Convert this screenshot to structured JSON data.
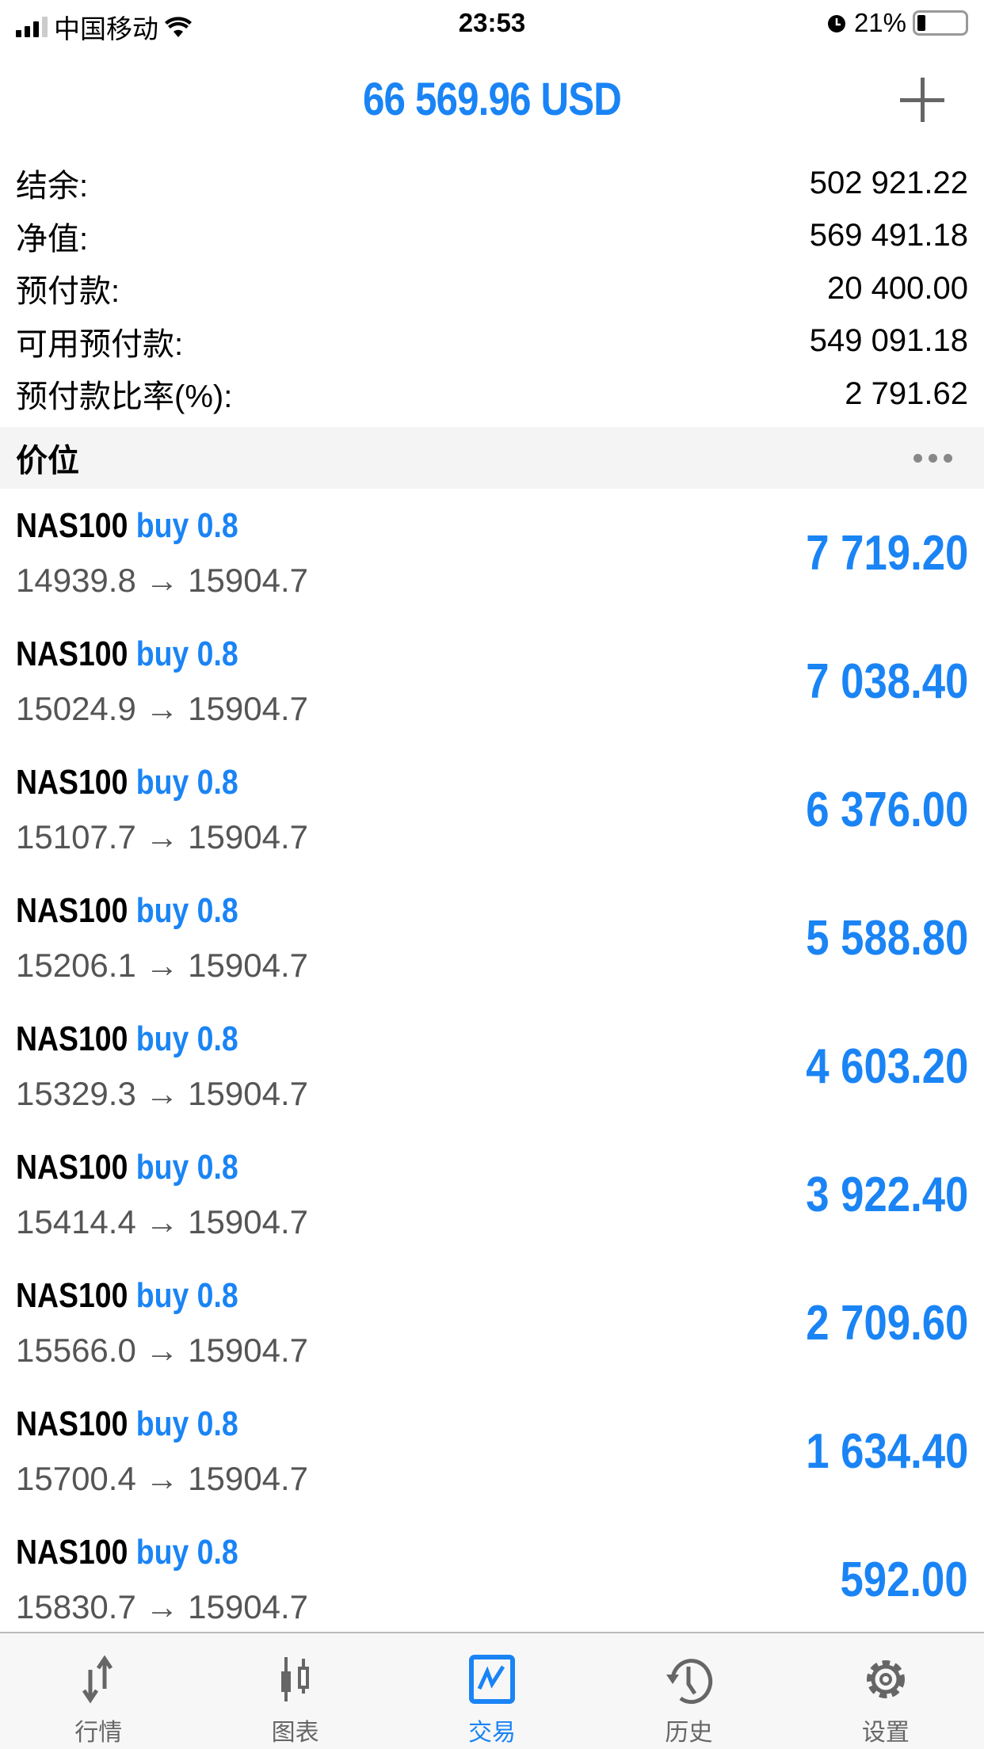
{
  "status_bar": {
    "carrier": "中国移动",
    "time": "23:53",
    "battery": "21%",
    "battery_level": 0.21
  },
  "header": {
    "title": "66 569.96 USD",
    "add_icon": "plus-icon"
  },
  "summary": [
    {
      "label": "结余:",
      "value": "502 921.22"
    },
    {
      "label": "净值:",
      "value": "569 491.18"
    },
    {
      "label": "预付款:",
      "value": "20 400.00"
    },
    {
      "label": "可用预付款:",
      "value": "549 091.18"
    },
    {
      "label": "预付款比率(%):",
      "value": "2 791.62"
    }
  ],
  "section": {
    "title": "价位",
    "menu_icon": "more-dots-icon"
  },
  "positions": [
    {
      "symbol": "NAS100",
      "side": "buy 0.8",
      "prices": "14939.8 → 15904.7",
      "profit": "7 719.20"
    },
    {
      "symbol": "NAS100",
      "side": "buy 0.8",
      "prices": "15024.9 → 15904.7",
      "profit": "7 038.40"
    },
    {
      "symbol": "NAS100",
      "side": "buy 0.8",
      "prices": "15107.7 → 15904.7",
      "profit": "6 376.00"
    },
    {
      "symbol": "NAS100",
      "side": "buy 0.8",
      "prices": "15206.1 → 15904.7",
      "profit": "5 588.80"
    },
    {
      "symbol": "NAS100",
      "side": "buy 0.8",
      "prices": "15329.3 → 15904.7",
      "profit": "4 603.20"
    },
    {
      "symbol": "NAS100",
      "side": "buy 0.8",
      "prices": "15414.4 → 15904.7",
      "profit": "3 922.40"
    },
    {
      "symbol": "NAS100",
      "side": "buy 0.8",
      "prices": "15566.0 → 15904.7",
      "profit": "2 709.60"
    },
    {
      "symbol": "NAS100",
      "side": "buy 0.8",
      "prices": "15700.4 → 15904.7",
      "profit": "1 634.40"
    },
    {
      "symbol": "NAS100",
      "side": "buy 0.8",
      "prices": "15830.7 → 15904.7",
      "profit": "592.00"
    }
  ],
  "tabs": [
    {
      "label": "行情",
      "icon": "quotes-arrows-icon"
    },
    {
      "label": "图表",
      "icon": "candlestick-chart-icon"
    },
    {
      "label": "交易",
      "icon": "trade-chart-icon",
      "active": true
    },
    {
      "label": "历史",
      "icon": "history-clock-icon"
    },
    {
      "label": "设置",
      "icon": "gear-icon"
    }
  ],
  "colors": {
    "accent": "#1a84f5",
    "inactive": "#666666"
  }
}
